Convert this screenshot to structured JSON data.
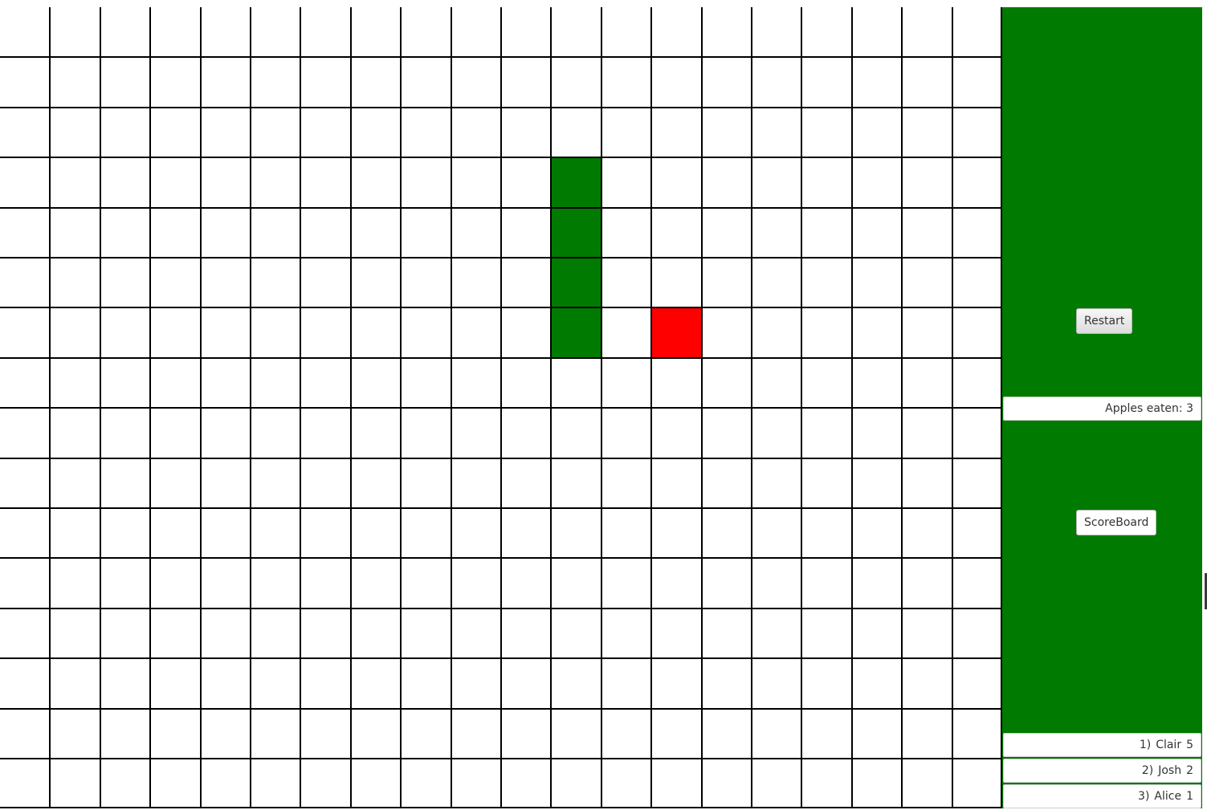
{
  "board": {
    "cols": 20,
    "rows": 16,
    "snake": [
      [
        11,
        3
      ],
      [
        11,
        4
      ],
      [
        11,
        5
      ],
      [
        11,
        6
      ]
    ],
    "apple": [
      13,
      6
    ],
    "colors": {
      "background": "#ffffff",
      "grid": "#000000",
      "snake": "#007a00",
      "apple": "#ff0000"
    }
  },
  "side_panel": {
    "background": "#007a00",
    "restart_label": "Restart",
    "apples_eaten": "Apples eaten: 3",
    "scoreboard_label": "ScoreBoard",
    "scores": [
      {
        "rank": "1)",
        "name": "Clair",
        "score": "5"
      },
      {
        "rank": "2)",
        "name": "Josh",
        "score": "2"
      },
      {
        "rank": "3)",
        "name": "Alice",
        "score": "1"
      }
    ]
  }
}
